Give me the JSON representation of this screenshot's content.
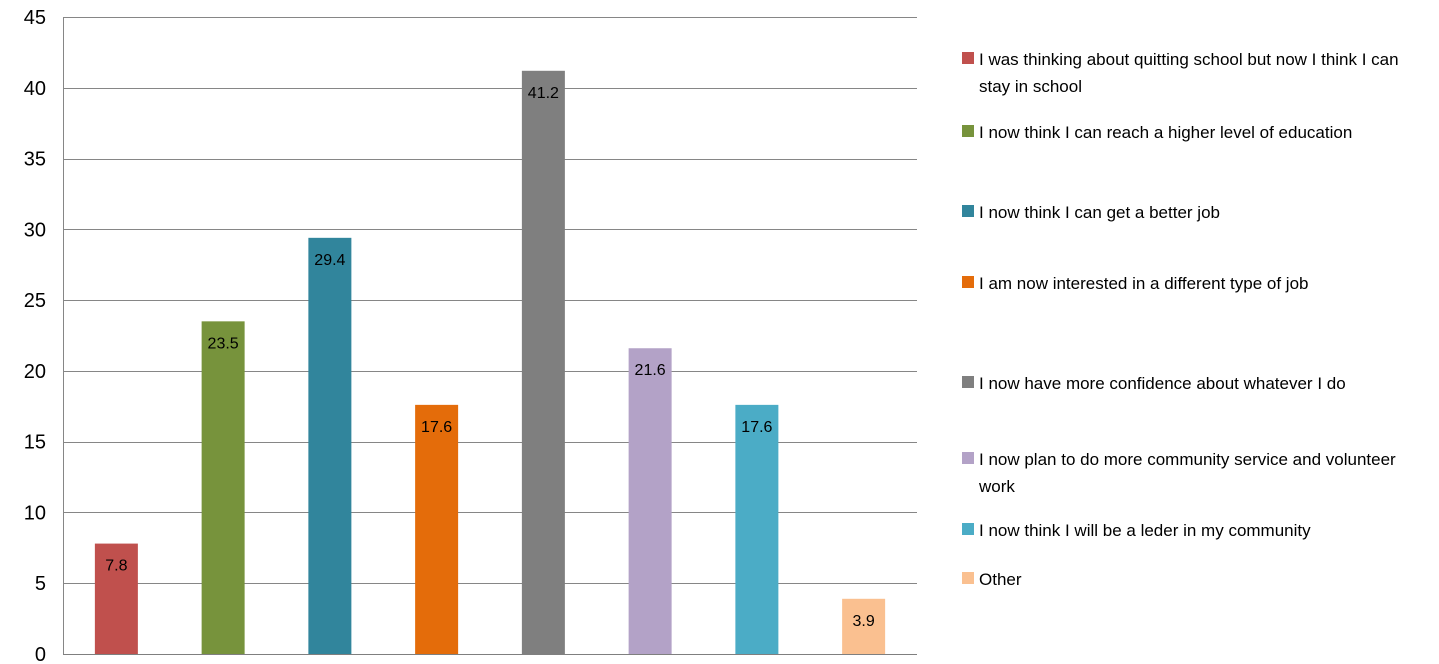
{
  "chart_data": {
    "type": "bar",
    "categories": [
      "I was thinking about quitting school but now I think I can stay in school",
      "I now think I can reach a higher level of education",
      "I now think I can get a better job",
      "I am now interested in a different type of job",
      "I now have more confidence about whatever I do",
      "I now plan to do more community service and volunteer work",
      "I now think I will be a leder in my community",
      "Other"
    ],
    "values": [
      7.8,
      23.5,
      29.4,
      17.6,
      41.2,
      21.6,
      17.6,
      3.9
    ],
    "data_labels": [
      "7.8",
      "23.5",
      "29.4",
      "17.6",
      "41.2",
      "21.6",
      "17.6",
      "3.9"
    ],
    "colors": [
      "#C0504D",
      "#77933C",
      "#31859C",
      "#E46C0A",
      "#7F7F7F",
      "#B3A2C7",
      "#4BACC6",
      "#FAC090"
    ],
    "ylim": [
      0,
      45
    ],
    "yticks": [
      0,
      5,
      10,
      15,
      20,
      25,
      30,
      35,
      40,
      45
    ],
    "title": "",
    "xlabel": "",
    "ylabel": "",
    "grid": true,
    "legend_position": "right"
  }
}
